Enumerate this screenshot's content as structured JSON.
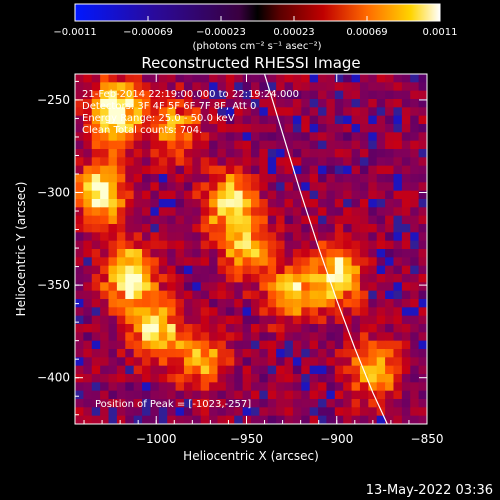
{
  "colorbar": {
    "tick_labels": [
      "-0.0011",
      "-0.00069",
      "-0.00023",
      "0.00023",
      "0.00069",
      "0.0011"
    ],
    "units": "(photons cm⁻² s⁻¹ asec⁻²)"
  },
  "chart_data": {
    "type": "heatmap",
    "title": "Reconstructed RHESSI Image",
    "xlabel": "Heliocentric X (arcsec)",
    "ylabel": "Heliocentric Y (arcsec)",
    "xlim": [
      -1045,
      -850
    ],
    "ylim": [
      -425,
      -236
    ],
    "x_ticks": [
      -1000,
      -950,
      -900,
      -850
    ],
    "y_ticks": [
      -250,
      -300,
      -350,
      -400
    ],
    "x_tick_labels": [
      "−1000",
      "−950",
      "−900",
      "−850"
    ],
    "y_tick_labels": [
      "−250",
      "−300",
      "−350",
      "−400"
    ],
    "colorbar_range": [
      -0.0011,
      0.0011
    ],
    "colormap": "RHESSI blue-purple-red-yellow-white",
    "grid": false,
    "annotations": [
      "21-Feb-2014 22:19:00.000 to 22:19:24.000",
      "Detectors: 3F 4F 5F 6F 7F 8F, Att 0",
      "Energy Range: 25.0 - 50.0 keV",
      "Clean     Total counts: 704.",
      "Position of Peak = [-1023,-257]"
    ],
    "peak_position": [
      -1023,
      -257
    ],
    "limb_curve": {
      "x": [
        -940,
        -930,
        -920,
        -910,
        -900,
        -890,
        -880,
        -872
      ],
      "y": [
        -236,
        -268,
        -300,
        -330,
        -358,
        -384,
        -408,
        -425
      ]
    },
    "bright_regions": [
      {
        "x": -1023,
        "y": -257,
        "level": 1.0
      },
      {
        "x": -1030,
        "y": -300,
        "level": 0.8
      },
      {
        "x": -1015,
        "y": -345,
        "level": 0.85
      },
      {
        "x": -1000,
        "y": -375,
        "level": 0.7
      },
      {
        "x": -990,
        "y": -265,
        "level": 0.55
      },
      {
        "x": -960,
        "y": -305,
        "level": 0.7
      },
      {
        "x": -950,
        "y": -330,
        "level": 0.6
      },
      {
        "x": -925,
        "y": -355,
        "level": 0.65
      },
      {
        "x": -900,
        "y": -345,
        "level": 0.75
      },
      {
        "x": -880,
        "y": -395,
        "level": 0.6
      },
      {
        "x": -975,
        "y": -390,
        "level": 0.55
      }
    ]
  },
  "footer": {
    "timestamp": "13-May-2022 03:36"
  }
}
